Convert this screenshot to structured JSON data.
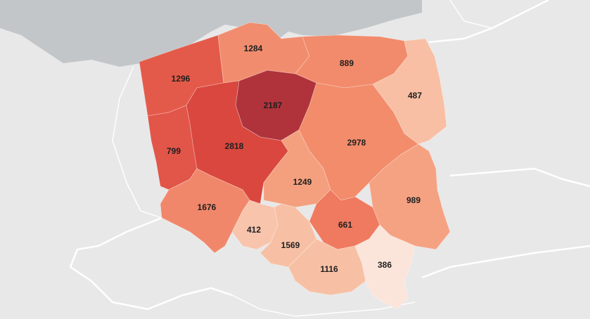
{
  "colors": {
    "sea": "#c2c6c9",
    "land": "#e8e8e8",
    "scale": [
      "#fbe3d8",
      "#f7c1a6",
      "#f4a384",
      "#f18b6c",
      "#e96d57",
      "#df5449",
      "#c9413c",
      "#b0333b"
    ]
  },
  "regions": [
    {
      "id": "zachodniopomorskie",
      "value": 1296,
      "color": "#e45a4a"
    },
    {
      "id": "pomorskie",
      "value": 1284,
      "color": "#f18d6e"
    },
    {
      "id": "warminsko-mazurskie",
      "value": 889,
      "color": "#f28b6b"
    },
    {
      "id": "podlaskie",
      "value": 487,
      "color": "#f8bfa4"
    },
    {
      "id": "kujawsko-pomorskie",
      "value": 2187,
      "color": "#b0333b"
    },
    {
      "id": "lubuskie",
      "value": 799,
      "color": "#e25549"
    },
    {
      "id": "wielkopolskie",
      "value": 2818,
      "color": "#d9473e"
    },
    {
      "id": "mazowieckie",
      "value": 2978,
      "color": "#f28c6b"
    },
    {
      "id": "lodzkie",
      "value": 1249,
      "color": "#f4a07f"
    },
    {
      "id": "lubelskie",
      "value": 989,
      "color": "#f5a283"
    },
    {
      "id": "dolnoslaskie",
      "value": 1676,
      "color": "#f1876a"
    },
    {
      "id": "opolskie",
      "value": 412,
      "color": "#f8c4ac"
    },
    {
      "id": "slaskie",
      "value": 1569,
      "color": "#f7c0a5"
    },
    {
      "id": "swietokrzyskie",
      "value": 661,
      "color": "#ef7a5f"
    },
    {
      "id": "malopolskie",
      "value": 1116,
      "color": "#f7c0a5"
    },
    {
      "id": "podkarpackie",
      "value": 386,
      "color": "#fbe4d9"
    }
  ]
}
